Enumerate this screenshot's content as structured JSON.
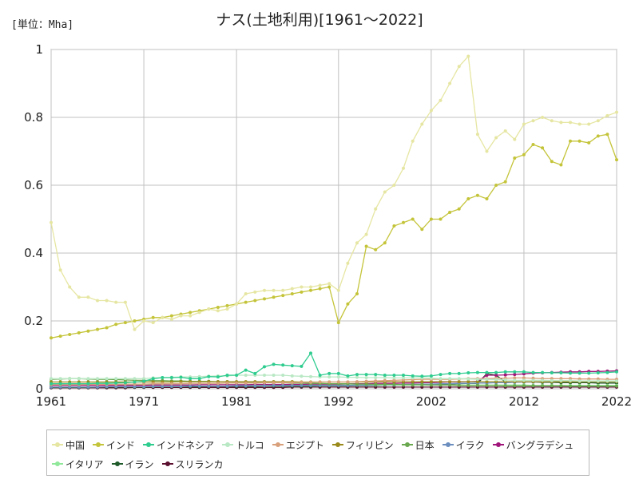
{
  "unit_label": "[単位：Mha]",
  "chart_data": {
    "type": "line",
    "title": "ナス(土地利用)[1961～2022]",
    "xlabel": "",
    "ylabel": "",
    "xlim": [
      1961,
      2022
    ],
    "ylim": [
      0,
      1
    ],
    "x_ticks": [
      "1961",
      "1971",
      "1981",
      "1992",
      "2002",
      "2012",
      "2022"
    ],
    "x_tick_values": [
      1961,
      1971,
      1981,
      1992,
      2002,
      2012,
      2022
    ],
    "y_ticks": [
      "0",
      "0.2",
      "0.4",
      "0.6",
      "0.8",
      "1"
    ],
    "y_tick_values": [
      0,
      0.2,
      0.4,
      0.6,
      0.8,
      1
    ],
    "grid": true,
    "legend_position": "bottom",
    "x": [
      1961,
      1962,
      1963,
      1964,
      1965,
      1966,
      1967,
      1968,
      1969,
      1970,
      1971,
      1972,
      1973,
      1974,
      1975,
      1976,
      1977,
      1978,
      1979,
      1980,
      1981,
      1982,
      1983,
      1984,
      1985,
      1986,
      1987,
      1988,
      1989,
      1990,
      1991,
      1992,
      1993,
      1994,
      1995,
      1996,
      1997,
      1998,
      1999,
      2000,
      2001,
      2002,
      2003,
      2004,
      2005,
      2006,
      2007,
      2008,
      2009,
      2010,
      2011,
      2012,
      2013,
      2014,
      2015,
      2016,
      2017,
      2018,
      2019,
      2020,
      2021,
      2022
    ],
    "series": [
      {
        "name": "中国",
        "color": "#e6e6a3",
        "values": [
          0.49,
          0.35,
          0.3,
          0.27,
          0.27,
          0.26,
          0.26,
          0.255,
          0.255,
          0.175,
          0.2,
          0.195,
          0.21,
          0.205,
          0.215,
          0.215,
          0.225,
          0.235,
          0.23,
          0.235,
          0.25,
          0.28,
          0.285,
          0.29,
          0.29,
          0.29,
          0.295,
          0.3,
          0.3,
          0.305,
          0.31,
          0.29,
          0.37,
          0.43,
          0.455,
          0.53,
          0.58,
          0.6,
          0.65,
          0.73,
          0.78,
          0.82,
          0.85,
          0.9,
          0.95,
          0.98,
          0.75,
          0.7,
          0.74,
          0.76,
          0.735,
          0.78,
          0.79,
          0.8,
          0.79,
          0.785,
          0.785,
          0.78,
          0.78,
          0.79,
          0.805,
          0.815
        ]
      },
      {
        "name": "インド",
        "color": "#c4c43a",
        "values": [
          0.15,
          0.155,
          0.16,
          0.165,
          0.17,
          0.175,
          0.18,
          0.19,
          0.195,
          0.2,
          0.205,
          0.21,
          0.21,
          0.215,
          0.22,
          0.225,
          0.23,
          0.235,
          0.24,
          0.245,
          0.25,
          0.255,
          0.26,
          0.265,
          0.27,
          0.275,
          0.28,
          0.285,
          0.29,
          0.295,
          0.3,
          0.195,
          0.25,
          0.28,
          0.42,
          0.41,
          0.43,
          0.48,
          0.49,
          0.5,
          0.47,
          0.5,
          0.5,
          0.52,
          0.53,
          0.56,
          0.57,
          0.56,
          0.6,
          0.61,
          0.68,
          0.69,
          0.72,
          0.71,
          0.67,
          0.66,
          0.73,
          0.73,
          0.725,
          0.745,
          0.75,
          0.675
        ]
      },
      {
        "name": "インドネシア",
        "color": "#2ecc8f",
        "values": [
          0.015,
          0.015,
          0.015,
          0.015,
          0.015,
          0.016,
          0.016,
          0.017,
          0.018,
          0.02,
          0.022,
          0.03,
          0.033,
          0.033,
          0.034,
          0.03,
          0.03,
          0.036,
          0.035,
          0.04,
          0.04,
          0.055,
          0.045,
          0.065,
          0.072,
          0.07,
          0.068,
          0.066,
          0.105,
          0.04,
          0.045,
          0.045,
          0.038,
          0.042,
          0.042,
          0.042,
          0.04,
          0.04,
          0.04,
          0.038,
          0.037,
          0.038,
          0.042,
          0.045,
          0.045,
          0.047,
          0.048,
          0.048,
          0.048,
          0.05,
          0.05,
          0.05,
          0.048,
          0.048,
          0.047,
          0.047,
          0.046,
          0.046,
          0.046,
          0.047,
          0.048,
          0.05
        ]
      },
      {
        "name": "トルコ",
        "color": "#b9e8c4",
        "values": [
          0.03,
          0.03,
          0.03,
          0.03,
          0.03,
          0.03,
          0.03,
          0.03,
          0.03,
          0.03,
          0.03,
          0.032,
          0.033,
          0.034,
          0.035,
          0.035,
          0.036,
          0.037,
          0.038,
          0.038,
          0.04,
          0.04,
          0.04,
          0.04,
          0.04,
          0.04,
          0.038,
          0.037,
          0.036,
          0.035,
          0.035,
          0.035,
          0.034,
          0.034,
          0.033,
          0.033,
          0.033,
          0.032,
          0.032,
          0.032,
          0.032,
          0.031,
          0.03,
          0.03,
          0.03,
          0.029,
          0.028,
          0.028,
          0.027,
          0.026,
          0.025,
          0.025,
          0.025,
          0.025,
          0.024,
          0.024,
          0.024,
          0.023,
          0.023,
          0.023,
          0.023,
          0.023
        ]
      },
      {
        "name": "エジプト",
        "color": "#d9a07c",
        "values": [
          0.012,
          0.012,
          0.012,
          0.012,
          0.013,
          0.013,
          0.013,
          0.013,
          0.014,
          0.014,
          0.014,
          0.015,
          0.015,
          0.015,
          0.015,
          0.016,
          0.016,
          0.016,
          0.016,
          0.017,
          0.017,
          0.017,
          0.017,
          0.018,
          0.018,
          0.018,
          0.018,
          0.019,
          0.019,
          0.02,
          0.02,
          0.02,
          0.02,
          0.021,
          0.022,
          0.023,
          0.024,
          0.025,
          0.026,
          0.027,
          0.028,
          0.028,
          0.028,
          0.028,
          0.029,
          0.03,
          0.03,
          0.03,
          0.031,
          0.031,
          0.032,
          0.032,
          0.031,
          0.03,
          0.03,
          0.03,
          0.03,
          0.029,
          0.029,
          0.029,
          0.028,
          0.028
        ]
      },
      {
        "name": "フィリピン",
        "color": "#9a8a1c",
        "values": [
          0.02,
          0.02,
          0.02,
          0.02,
          0.02,
          0.02,
          0.02,
          0.02,
          0.02,
          0.02,
          0.02,
          0.02,
          0.02,
          0.02,
          0.021,
          0.021,
          0.021,
          0.021,
          0.021,
          0.021,
          0.021,
          0.021,
          0.021,
          0.021,
          0.021,
          0.021,
          0.021,
          0.02,
          0.02,
          0.02,
          0.02,
          0.02,
          0.02,
          0.02,
          0.02,
          0.021,
          0.021,
          0.021,
          0.021,
          0.021,
          0.021,
          0.021,
          0.021,
          0.021,
          0.021,
          0.021,
          0.021,
          0.021,
          0.021,
          0.021,
          0.021,
          0.021,
          0.021,
          0.021,
          0.021,
          0.021,
          0.021,
          0.021,
          0.021,
          0.021,
          0.021,
          0.021
        ]
      },
      {
        "name": "日本",
        "color": "#6aa84f",
        "values": [
          0.028,
          0.029,
          0.03,
          0.03,
          0.029,
          0.028,
          0.028,
          0.027,
          0.026,
          0.025,
          0.025,
          0.024,
          0.024,
          0.023,
          0.023,
          0.022,
          0.022,
          0.022,
          0.021,
          0.021,
          0.02,
          0.02,
          0.019,
          0.019,
          0.018,
          0.018,
          0.017,
          0.017,
          0.016,
          0.016,
          0.015,
          0.015,
          0.015,
          0.014,
          0.014,
          0.013,
          0.013,
          0.013,
          0.012,
          0.012,
          0.012,
          0.011,
          0.011,
          0.011,
          0.01,
          0.01,
          0.01,
          0.01,
          0.01,
          0.009,
          0.009,
          0.009,
          0.009,
          0.009,
          0.009,
          0.009,
          0.008,
          0.008,
          0.008,
          0.008,
          0.008,
          0.008
        ]
      },
      {
        "name": "イラク",
        "color": "#6b8ebf",
        "values": [
          0.005,
          0.005,
          0.005,
          0.005,
          0.005,
          0.005,
          0.006,
          0.006,
          0.006,
          0.006,
          0.006,
          0.007,
          0.007,
          0.007,
          0.007,
          0.008,
          0.008,
          0.008,
          0.008,
          0.008,
          0.009,
          0.009,
          0.009,
          0.009,
          0.01,
          0.01,
          0.01,
          0.01,
          0.01,
          0.01,
          0.01,
          0.01,
          0.01,
          0.011,
          0.011,
          0.012,
          0.012,
          0.012,
          0.013,
          0.013,
          0.014,
          0.014,
          0.015,
          0.015,
          0.016,
          0.016,
          0.017,
          0.017,
          0.018,
          0.018,
          0.019,
          0.02,
          0.02,
          0.021,
          0.021,
          0.022,
          0.022,
          0.022,
          0.022,
          0.022,
          0.022,
          0.022
        ]
      },
      {
        "name": "バングラデシュ",
        "color": "#a0157a",
        "values": [
          0.01,
          0.01,
          0.01,
          0.01,
          0.01,
          0.01,
          0.01,
          0.01,
          0.01,
          0.01,
          0.01,
          0.011,
          0.011,
          0.011,
          0.011,
          0.011,
          0.012,
          0.012,
          0.012,
          0.012,
          0.012,
          0.012,
          0.013,
          0.013,
          0.013,
          0.013,
          0.013,
          0.013,
          0.014,
          0.014,
          0.014,
          0.014,
          0.015,
          0.015,
          0.015,
          0.016,
          0.016,
          0.016,
          0.017,
          0.017,
          0.018,
          0.018,
          0.019,
          0.02,
          0.02,
          0.021,
          0.022,
          0.04,
          0.04,
          0.041,
          0.042,
          0.044,
          0.046,
          0.047,
          0.048,
          0.049,
          0.05,
          0.05,
          0.051,
          0.051,
          0.052,
          0.053
        ]
      },
      {
        "name": "イタリア",
        "color": "#90e89a",
        "values": [
          0.013,
          0.013,
          0.013,
          0.013,
          0.013,
          0.013,
          0.013,
          0.012,
          0.012,
          0.012,
          0.012,
          0.012,
          0.012,
          0.012,
          0.012,
          0.012,
          0.012,
          0.012,
          0.012,
          0.012,
          0.012,
          0.012,
          0.012,
          0.012,
          0.012,
          0.012,
          0.012,
          0.012,
          0.012,
          0.012,
          0.012,
          0.012,
          0.011,
          0.011,
          0.011,
          0.011,
          0.011,
          0.011,
          0.011,
          0.011,
          0.011,
          0.011,
          0.011,
          0.011,
          0.011,
          0.011,
          0.011,
          0.011,
          0.011,
          0.011,
          0.011,
          0.011,
          0.01,
          0.01,
          0.01,
          0.01,
          0.01,
          0.01,
          0.01,
          0.01,
          0.01,
          0.01
        ]
      },
      {
        "name": "イラン",
        "color": "#1e5a2a",
        "values": [
          0.004,
          0.004,
          0.004,
          0.004,
          0.004,
          0.005,
          0.005,
          0.005,
          0.005,
          0.005,
          0.005,
          0.006,
          0.006,
          0.006,
          0.006,
          0.006,
          0.006,
          0.007,
          0.007,
          0.007,
          0.007,
          0.007,
          0.007,
          0.008,
          0.008,
          0.008,
          0.008,
          0.008,
          0.008,
          0.009,
          0.009,
          0.009,
          0.009,
          0.01,
          0.01,
          0.01,
          0.011,
          0.011,
          0.012,
          0.012,
          0.013,
          0.013,
          0.014,
          0.014,
          0.015,
          0.016,
          0.016,
          0.045,
          0.04,
          0.02,
          0.02,
          0.02,
          0.02,
          0.019,
          0.019,
          0.018,
          0.018,
          0.018,
          0.018,
          0.017,
          0.017,
          0.017
        ]
      },
      {
        "name": "スリランカ",
        "color": "#5a0f2e",
        "values": [
          0.003,
          0.003,
          0.003,
          0.003,
          0.003,
          0.003,
          0.003,
          0.003,
          0.003,
          0.004,
          0.004,
          0.004,
          0.004,
          0.004,
          0.004,
          0.004,
          0.004,
          0.004,
          0.004,
          0.004,
          0.004,
          0.004,
          0.004,
          0.004,
          0.004,
          0.004,
          0.005,
          0.005,
          0.005,
          0.005,
          0.005,
          0.005,
          0.005,
          0.005,
          0.005,
          0.005,
          0.005,
          0.005,
          0.005,
          0.005,
          0.005,
          0.005,
          0.005,
          0.005,
          0.005,
          0.005,
          0.005,
          0.005,
          0.005,
          0.005,
          0.005,
          0.005,
          0.005,
          0.005,
          0.005,
          0.005,
          0.005,
          0.005,
          0.005,
          0.005,
          0.005,
          0.005
        ]
      }
    ]
  }
}
